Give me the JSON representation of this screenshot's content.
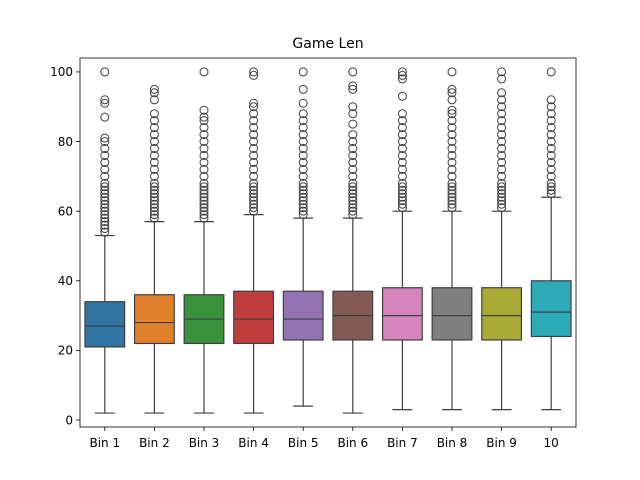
{
  "chart_data": {
    "type": "box",
    "title": "Game Len",
    "xlabel": "",
    "ylabel": "",
    "ylim": [
      -2,
      104
    ],
    "yticks": [
      0,
      20,
      40,
      60,
      80,
      100
    ],
    "grid": false,
    "legend": "none",
    "categories": [
      "Bin 1",
      "Bin 2",
      "Bin 3",
      "Bin 4",
      "Bin 5",
      "Bin 6",
      "Bin 7",
      "Bin 8",
      "Bin 9",
      "10"
    ],
    "colors": [
      "#3274a1",
      "#e1812c",
      "#3a923a",
      "#c03d3e",
      "#9372b2",
      "#845b53",
      "#d684bd",
      "#7f7f7f",
      "#a9aa35",
      "#2eabb8"
    ],
    "boxes": [
      {
        "min": 2,
        "q1": 21,
        "median": 27,
        "q3": 34,
        "max": 53,
        "outliers": [
          54,
          55,
          56,
          57,
          58,
          59,
          60,
          61,
          62,
          63,
          64,
          65,
          66,
          67,
          68,
          70,
          72,
          74,
          76,
          78,
          80,
          81,
          87,
          91,
          92,
          100
        ]
      },
      {
        "min": 2,
        "q1": 22,
        "median": 28,
        "q3": 36,
        "max": 57,
        "outliers": [
          58,
          59,
          60,
          61,
          62,
          63,
          64,
          65,
          66,
          67,
          68,
          70,
          72,
          74,
          76,
          78,
          80,
          82,
          84,
          86,
          88,
          92,
          94,
          95
        ]
      },
      {
        "min": 2,
        "q1": 22,
        "median": 29,
        "q3": 36,
        "max": 57,
        "outliers": [
          58,
          59,
          60,
          61,
          62,
          63,
          64,
          65,
          66,
          67,
          68,
          70,
          72,
          74,
          76,
          78,
          80,
          82,
          84,
          86,
          87,
          89,
          100
        ]
      },
      {
        "min": 2,
        "q1": 22,
        "median": 29,
        "q3": 37,
        "max": 59,
        "outliers": [
          60,
          61,
          62,
          63,
          64,
          65,
          66,
          67,
          68,
          70,
          72,
          74,
          76,
          78,
          80,
          82,
          84,
          86,
          88,
          90,
          91,
          99,
          100
        ]
      },
      {
        "min": 4,
        "q1": 23,
        "median": 29,
        "q3": 37,
        "max": 58,
        "outliers": [
          59,
          60,
          61,
          62,
          63,
          64,
          65,
          66,
          67,
          68,
          70,
          72,
          74,
          76,
          78,
          80,
          82,
          84,
          86,
          88,
          91,
          95,
          100
        ]
      },
      {
        "min": 2,
        "q1": 23,
        "median": 30,
        "q3": 37,
        "max": 58,
        "outliers": [
          59,
          60,
          61,
          62,
          63,
          64,
          65,
          66,
          67,
          68,
          70,
          72,
          74,
          76,
          78,
          80,
          82,
          85,
          88,
          90,
          95,
          96,
          100
        ]
      },
      {
        "min": 3,
        "q1": 23,
        "median": 30,
        "q3": 38,
        "max": 60,
        "outliers": [
          61,
          62,
          63,
          64,
          65,
          66,
          67,
          68,
          70,
          72,
          74,
          76,
          78,
          80,
          82,
          84,
          86,
          88,
          93,
          98,
          99,
          100
        ]
      },
      {
        "min": 3,
        "q1": 23,
        "median": 30,
        "q3": 38,
        "max": 60,
        "outliers": [
          61,
          62,
          63,
          64,
          65,
          66,
          67,
          68,
          70,
          72,
          74,
          76,
          78,
          80,
          82,
          84,
          86,
          88,
          89,
          92,
          94,
          95,
          100
        ]
      },
      {
        "min": 3,
        "q1": 23,
        "median": 30,
        "q3": 38,
        "max": 60,
        "outliers": [
          61,
          62,
          63,
          64,
          65,
          66,
          67,
          68,
          70,
          72,
          74,
          76,
          78,
          80,
          82,
          84,
          86,
          88,
          90,
          92,
          94,
          98,
          100
        ]
      },
      {
        "min": 3,
        "q1": 24,
        "median": 31,
        "q3": 40,
        "max": 64,
        "outliers": [
          65,
          66,
          67,
          68,
          70,
          72,
          74,
          76,
          78,
          80,
          82,
          84,
          86,
          88,
          90,
          92,
          100
        ]
      }
    ]
  }
}
